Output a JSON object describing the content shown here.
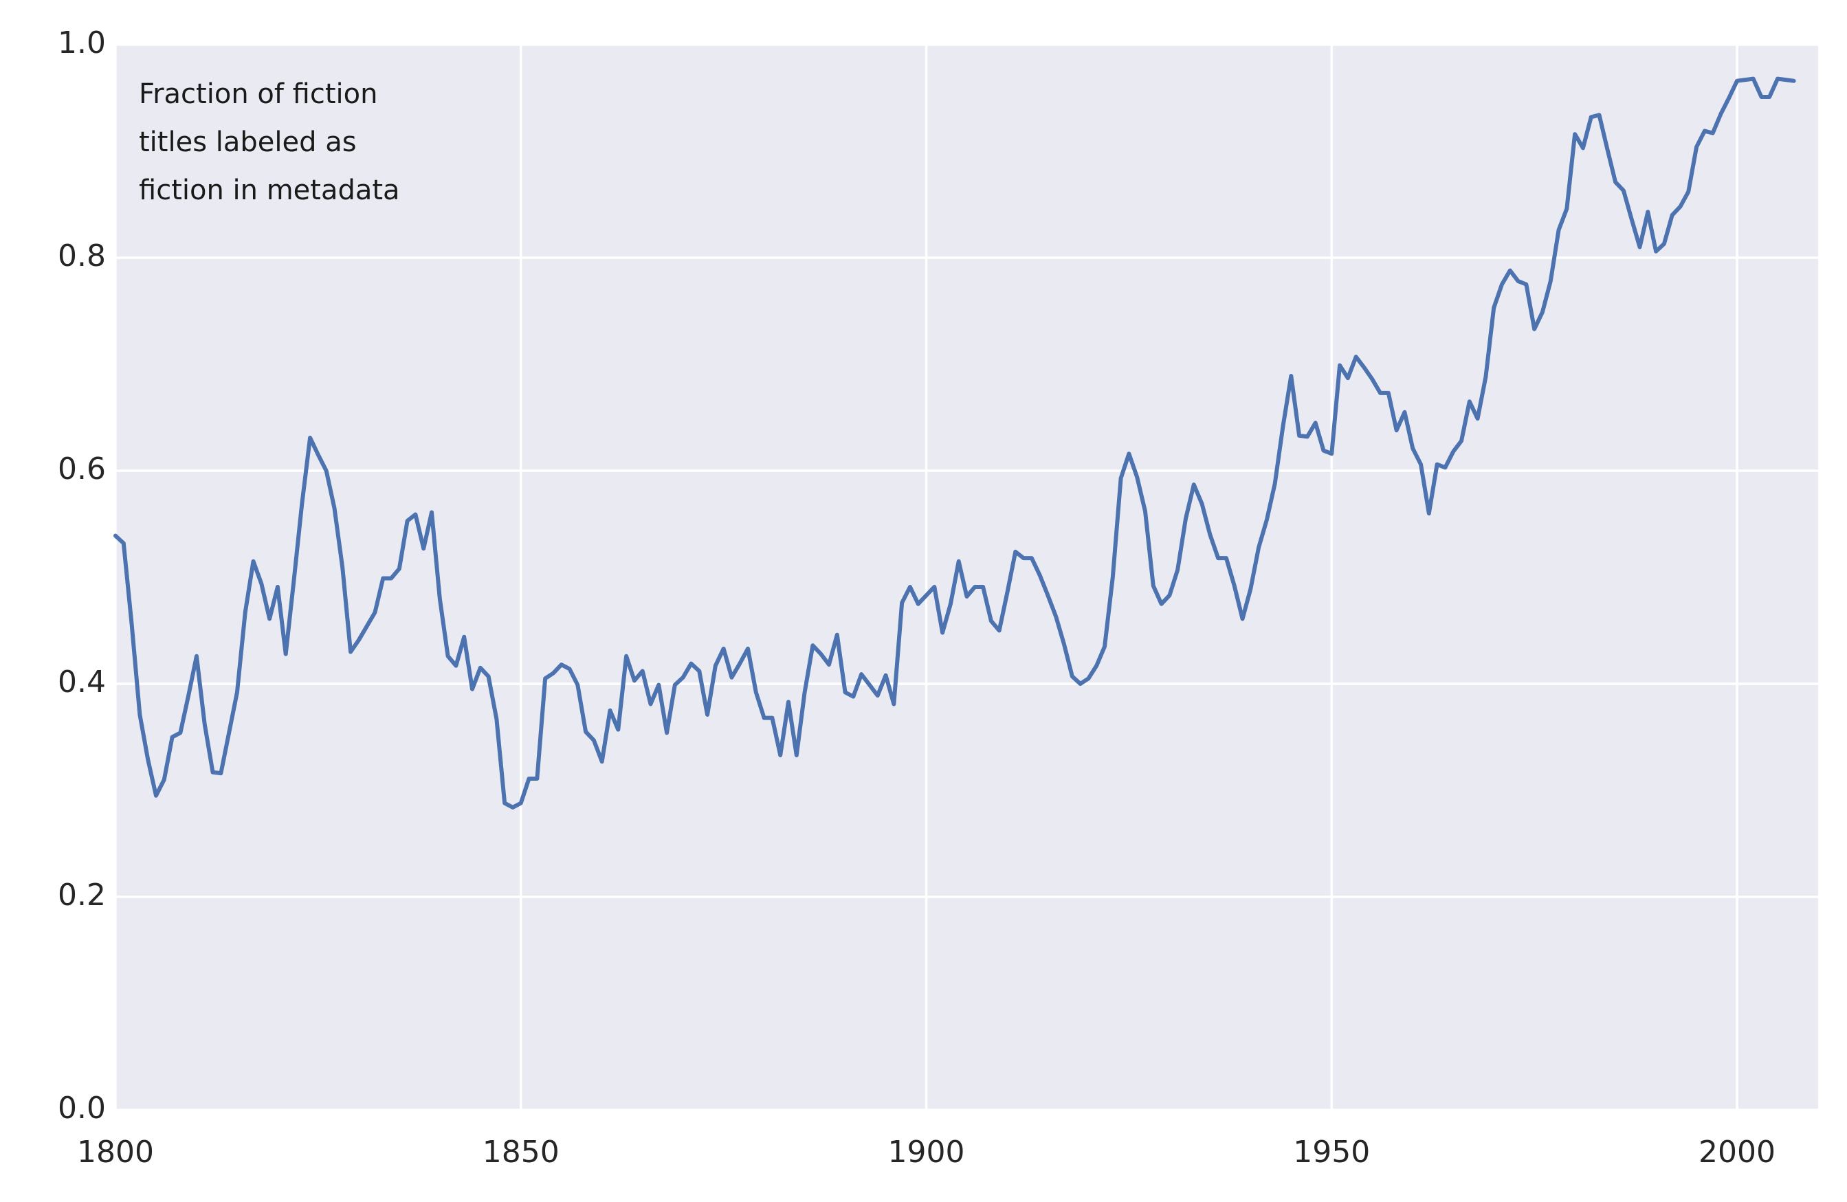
{
  "chart_data": {
    "type": "line",
    "annotation": [
      "Fraction of fiction",
      "titles labeled as",
      "fiction in metadata"
    ],
    "color": "#4c72b0",
    "grid": true,
    "background": "#eaeaf2",
    "x": [
      1800,
      1801,
      1802,
      1803,
      1804,
      1805,
      1806,
      1807,
      1808,
      1809,
      1810,
      1811,
      1812,
      1813,
      1814,
      1815,
      1816,
      1817,
      1818,
      1819,
      1820,
      1821,
      1822,
      1823,
      1824,
      1825,
      1826,
      1827,
      1828,
      1829,
      1830,
      1831,
      1832,
      1833,
      1834,
      1835,
      1836,
      1837,
      1838,
      1839,
      1840,
      1841,
      1842,
      1843,
      1844,
      1845,
      1846,
      1847,
      1848,
      1849,
      1850,
      1851,
      1852,
      1853,
      1854,
      1855,
      1856,
      1857,
      1858,
      1859,
      1860,
      1861,
      1862,
      1863,
      1864,
      1865,
      1866,
      1867,
      1868,
      1869,
      1870,
      1871,
      1872,
      1873,
      1874,
      1875,
      1876,
      1877,
      1878,
      1879,
      1880,
      1881,
      1882,
      1883,
      1884,
      1885,
      1886,
      1887,
      1888,
      1889,
      1890,
      1891,
      1892,
      1893,
      1894,
      1895,
      1896,
      1897,
      1898,
      1899,
      1900,
      1901,
      1902,
      1903,
      1904,
      1905,
      1906,
      1907,
      1908,
      1909,
      1910,
      1911,
      1912,
      1913,
      1914,
      1915,
      1916,
      1917,
      1918,
      1919,
      1920,
      1921,
      1922,
      1923,
      1924,
      1925,
      1926,
      1927,
      1928,
      1929,
      1930,
      1931,
      1932,
      1933,
      1934,
      1935,
      1936,
      1937,
      1938,
      1939,
      1940,
      1941,
      1942,
      1943,
      1944,
      1945,
      1946,
      1947,
      1948,
      1949,
      1950,
      1951,
      1952,
      1953,
      1954,
      1955,
      1956,
      1957,
      1958,
      1959,
      1960,
      1961,
      1962,
      1963,
      1964,
      1965,
      1966,
      1967,
      1968,
      1969,
      1970,
      1971,
      1972,
      1973,
      1974,
      1975,
      1976,
      1977,
      1978,
      1979,
      1980,
      1981,
      1982,
      1983,
      1984,
      1985,
      1986,
      1987,
      1988,
      1989,
      1990,
      1991,
      1992,
      1993,
      1994,
      1995,
      1996,
      1997,
      1998,
      1999,
      2000,
      2001,
      2002,
      2003,
      2004,
      2005,
      2006,
      2007
    ],
    "values": [
      0.539,
      0.532,
      0.456,
      0.371,
      0.329,
      0.295,
      0.31,
      0.35,
      0.354,
      0.389,
      0.426,
      0.362,
      0.317,
      0.316,
      0.354,
      0.392,
      0.467,
      0.515,
      0.494,
      0.461,
      0.491,
      0.428,
      0.497,
      0.569,
      0.631,
      0.615,
      0.6,
      0.565,
      0.509,
      0.43,
      0.441,
      0.454,
      0.467,
      0.499,
      0.499,
      0.508,
      0.553,
      0.559,
      0.527,
      0.561,
      0.48,
      0.426,
      0.417,
      0.444,
      0.395,
      0.415,
      0.407,
      0.367,
      0.288,
      0.284,
      0.288,
      0.311,
      0.311,
      0.405,
      0.41,
      0.418,
      0.414,
      0.399,
      0.355,
      0.347,
      0.327,
      0.375,
      0.357,
      0.426,
      0.403,
      0.412,
      0.381,
      0.399,
      0.354,
      0.399,
      0.406,
      0.419,
      0.412,
      0.371,
      0.417,
      0.433,
      0.406,
      0.419,
      0.433,
      0.392,
      0.368,
      0.368,
      0.333,
      0.383,
      0.333,
      0.392,
      0.436,
      0.428,
      0.418,
      0.446,
      0.392,
      0.388,
      0.409,
      0.399,
      0.389,
      0.408,
      0.381,
      0.476,
      0.491,
      0.475,
      0.483,
      0.491,
      0.448,
      0.475,
      0.515,
      0.482,
      0.491,
      0.491,
      0.459,
      0.45,
      0.486,
      0.524,
      0.518,
      0.518,
      0.502,
      0.483,
      0.463,
      0.437,
      0.407,
      0.4,
      0.405,
      0.417,
      0.435,
      0.5,
      0.593,
      0.616,
      0.594,
      0.562,
      0.492,
      0.475,
      0.483,
      0.507,
      0.555,
      0.587,
      0.569,
      0.54,
      0.518,
      0.518,
      0.492,
      0.461,
      0.489,
      0.528,
      0.554,
      0.588,
      0.642,
      0.689,
      0.633,
      0.632,
      0.645,
      0.619,
      0.616,
      0.699,
      0.687,
      0.707,
      0.697,
      0.686,
      0.673,
      0.673,
      0.638,
      0.655,
      0.621,
      0.606,
      0.56,
      0.606,
      0.603,
      0.618,
      0.628,
      0.665,
      0.649,
      0.688,
      0.753,
      0.775,
      0.788,
      0.778,
      0.775,
      0.733,
      0.749,
      0.778,
      0.826,
      0.846,
      0.916,
      0.903,
      0.932,
      0.934,
      0.902,
      0.871,
      0.863,
      0.836,
      0.81,
      0.843,
      0.806,
      0.813,
      0.84,
      0.848,
      0.862,
      0.904,
      0.919,
      0.917,
      0.935,
      0.95,
      0.966,
      0.967,
      0.968,
      0.951,
      0.951,
      0.968,
      0.967,
      0.966
    ],
    "xlim": [
      1800,
      2010
    ],
    "xticks": [
      1800,
      1850,
      1900,
      1950,
      2000
    ],
    "ylim": [
      0,
      1
    ],
    "yticks": [
      {
        "value": 0,
        "label": "0.0"
      },
      0.2,
      0.4,
      0.6,
      0.8,
      {
        "value": 1,
        "label": "1.0"
      }
    ]
  }
}
